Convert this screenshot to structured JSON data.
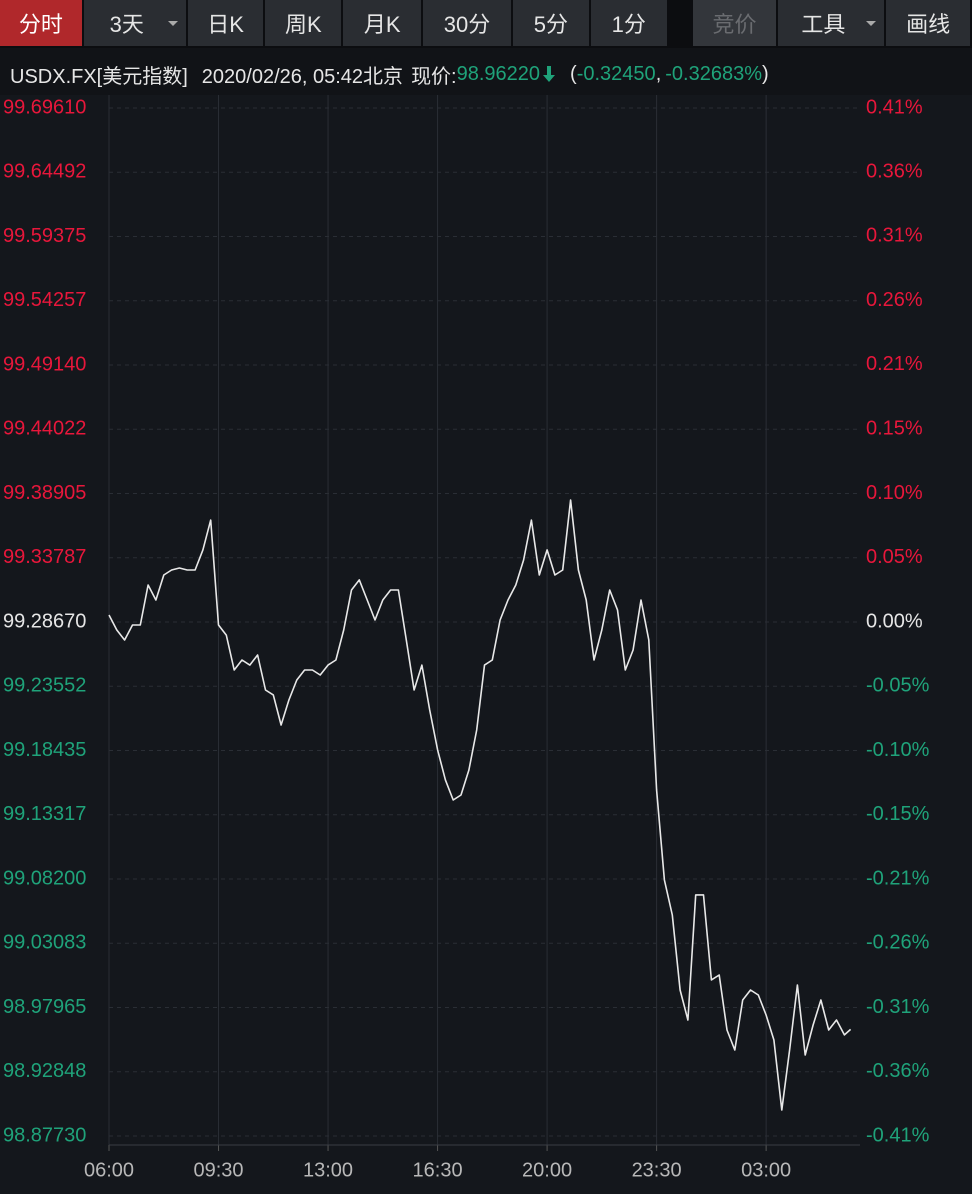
{
  "toolbar": {
    "tabs": [
      {
        "label": "分时",
        "state": "active"
      },
      {
        "label": "3天",
        "dropdown": true
      },
      {
        "label": "日K"
      },
      {
        "label": "周K"
      },
      {
        "label": "月K"
      },
      {
        "label": "30分"
      },
      {
        "label": "5分"
      },
      {
        "label": "1分"
      },
      {
        "label": "竞价",
        "state": "disabled"
      },
      {
        "label": "工具",
        "dropdown": true
      },
      {
        "label": "画线"
      }
    ]
  },
  "header": {
    "segments": [
      {
        "text": "USDX.FX[美元指数]",
        "color": "#e6e6e6"
      },
      {
        "text": "2020/02/26, 05:42北京",
        "color": "#e6e6e6"
      },
      {
        "text": "现价:",
        "color": "#e6e6e6"
      },
      {
        "text": "98.96220",
        "color": "#1fa37a"
      },
      {
        "text": "(",
        "color": "#e6e6e6"
      },
      {
        "text": "-0.32450",
        "color": "#1fa37a"
      },
      {
        "text": ",",
        "color": "#e6e6e6"
      },
      {
        "text": "-0.32683%",
        "color": "#1fa37a"
      },
      {
        "text": ")",
        "color": "#e6e6e6"
      }
    ]
  },
  "chart_data": {
    "type": "line",
    "color": "#e8e8e8",
    "grid": true,
    "up_color": "#e8173b",
    "down_color": "#1fa37a",
    "flat_color": "#e6e6e6",
    "x": [
      "06:00",
      "06:15",
      "06:30",
      "06:45",
      "07:00",
      "07:15",
      "07:30",
      "07:45",
      "08:00",
      "08:15",
      "08:30",
      "08:45",
      "09:00",
      "09:15",
      "09:30",
      "09:45",
      "10:00",
      "10:15",
      "10:30",
      "10:45",
      "11:00",
      "11:15",
      "11:30",
      "11:45",
      "12:00",
      "12:15",
      "12:30",
      "12:45",
      "13:00",
      "13:15",
      "13:30",
      "13:45",
      "14:00",
      "14:15",
      "14:30",
      "14:45",
      "15:00",
      "15:15",
      "15:30",
      "15:45",
      "16:00",
      "16:15",
      "16:30",
      "16:45",
      "17:00",
      "17:15",
      "17:30",
      "17:45",
      "18:00",
      "18:15",
      "18:30",
      "18:45",
      "19:00",
      "19:15",
      "19:30",
      "19:45",
      "20:00",
      "20:15",
      "20:30",
      "20:45",
      "21:00",
      "21:15",
      "21:30",
      "21:45",
      "22:00",
      "22:15",
      "22:30",
      "22:45",
      "23:00",
      "23:15",
      "23:30",
      "23:45",
      "00:00",
      "00:15",
      "00:30",
      "00:45",
      "01:00",
      "01:15",
      "01:30",
      "01:45",
      "02:00",
      "02:15",
      "02:30",
      "02:45",
      "03:00",
      "03:15",
      "03:30",
      "03:45",
      "04:00",
      "04:15",
      "04:30",
      "04:45",
      "05:00",
      "05:15",
      "05:30",
      "05:42"
    ],
    "values": [
      99.2923,
      99.2803,
      99.2724,
      99.2843,
      99.2843,
      99.3162,
      99.3042,
      99.3241,
      99.3281,
      99.3297,
      99.3281,
      99.3281,
      99.3441,
      99.3679,
      99.2843,
      99.2763,
      99.2485,
      99.2564,
      99.2524,
      99.2604,
      99.2325,
      99.2286,
      99.2047,
      99.2246,
      99.2405,
      99.2485,
      99.2485,
      99.2445,
      99.2524,
      99.2564,
      99.2803,
      99.3122,
      99.3202,
      99.3042,
      99.2883,
      99.3042,
      99.3122,
      99.3122,
      99.2724,
      99.2325,
      99.2524,
      99.2166,
      99.1848,
      99.1609,
      99.1449,
      99.1489,
      99.1688,
      99.2007,
      99.2524,
      99.2564,
      99.2883,
      99.3042,
      99.3162,
      99.3361,
      99.3679,
      99.3241,
      99.3441,
      99.3241,
      99.3281,
      99.3839,
      99.3281,
      99.3042,
      99.2564,
      99.2803,
      99.3122,
      99.2963,
      99.2485,
      99.2644,
      99.3042,
      99.2724,
      99.1529,
      99.0812,
      99.0533,
      98.9936,
      98.9697,
      99.0693,
      99.0693,
      99.0016,
      99.0055,
      98.9617,
      98.9458,
      98.9856,
      98.9936,
      98.9896,
      98.9737,
      98.9538,
      98.898,
      98.9458,
      98.9976,
      98.9418,
      98.9657,
      98.9856,
      98.9617,
      98.9697,
      98.9578,
      98.9622
    ],
    "xticks": [
      "06:00",
      "09:30",
      "13:00",
      "16:30",
      "20:00",
      "23:30",
      "03:00"
    ],
    "ylim": [
      98.8773,
      99.6961
    ],
    "yticks": [
      {
        "value": 99.6961,
        "label": "99.69610"
      },
      99.64492,
      99.59375,
      99.54257,
      {
        "value": 99.4914,
        "label": "99.49140"
      },
      99.44022,
      99.38905,
      99.33787,
      {
        "value": 99.2867,
        "label": "99.28670"
      },
      99.23552,
      99.18435,
      99.13317,
      {
        "value": 99.082,
        "label": "99.08200"
      },
      99.03083,
      98.97965,
      98.92848,
      {
        "value": 98.8773,
        "label": "98.87730"
      }
    ],
    "y2lim": [
      -0.4123,
      0.4123
    ],
    "y2ticks": [
      {
        "value": 0.4123,
        "label": "0.41%"
      },
      {
        "value": 0.3608,
        "label": "0.36%"
      },
      {
        "value": 0.3093,
        "label": "0.31%"
      },
      {
        "value": 0.2577,
        "label": "0.26%"
      },
      {
        "value": 0.2062,
        "label": "0.21%"
      },
      {
        "value": 0.1546,
        "label": "0.15%"
      },
      {
        "value": 0.1031,
        "label": "0.10%"
      },
      {
        "value": 0.0515,
        "label": "0.05%"
      },
      {
        "value": 0,
        "label": "0.00%"
      },
      {
        "value": -0.0515,
        "label": "-0.05%"
      },
      {
        "value": -0.1031,
        "label": "-0.10%"
      },
      {
        "value": -0.1546,
        "label": "-0.15%"
      },
      {
        "value": -0.2062,
        "label": "-0.21%"
      },
      {
        "value": -0.2577,
        "label": "-0.26%"
      },
      {
        "value": -0.3093,
        "label": "-0.31%"
      },
      {
        "value": -0.3608,
        "label": "-0.36%"
      },
      {
        "value": -0.4123,
        "label": "-0.41%"
      }
    ]
  }
}
